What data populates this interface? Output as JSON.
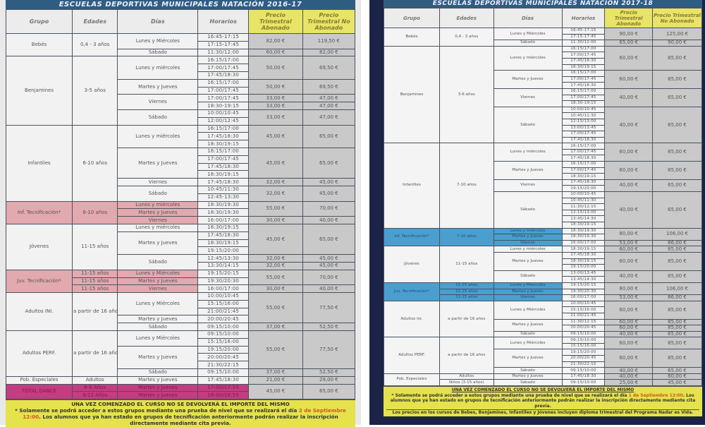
{
  "colors": {
    "header_bar": "#2f5d82",
    "price_header": "#e8e468",
    "tecnificacion_2016": "#e2a9ae",
    "total_dance": "#c23d82",
    "tecnificacion_2017": "#4a9fce",
    "footer": "#e5e24c"
  },
  "tables": [
    {
      "title": "ESCUELAS DEPORTIVAS MUNICIPALES NATACIÓN 2016-17",
      "headers": [
        "Grupo",
        "Edades",
        "Días",
        "Horarios",
        "Precio Trimestral Abonado",
        "Precio Trimestral No Abonado"
      ],
      "rows": [
        [
          [
            "Bebés",
            3
          ],
          [
            "0,4 - 3 años",
            3
          ],
          [
            "Lunes y Miércoles",
            2
          ],
          "16:45-17:15",
          [
            "82,00 €",
            2
          ],
          [
            "119,50 €",
            2
          ]
        ],
        [
          "17:15-17:45"
        ],
        [
          "Sábado",
          "11:30/12:00",
          "60,00 €",
          "82,00 €"
        ],
        [
          [
            "Benjamines",
            9
          ],
          [
            "3-5 años",
            9
          ],
          [
            "Lunes y miércoles",
            3
          ],
          "16:15/17:00",
          [
            "50,00 €",
            3
          ],
          [
            "69,50 €",
            3
          ]
        ],
        [
          "17:00/17:45"
        ],
        [
          "17:45/18:30"
        ],
        [
          [
            "Martes y Jueves",
            2
          ],
          "16:15/17:00",
          [
            "50,00 €",
            2
          ],
          [
            "69,50 €",
            2
          ]
        ],
        [
          "17:00/17:45"
        ],
        [
          [
            "Viernes",
            2
          ],
          "17:00/17:45",
          "33,00 €",
          "47,00 €"
        ],
        [
          "18:30-19:15",
          "33,00 €",
          "47,00 €"
        ],
        [
          [
            "Sábado",
            2
          ],
          "10:00/10:45",
          [
            "33,00 €",
            2
          ],
          [
            "47,00 €",
            2
          ]
        ],
        [
          "12:00/12:45"
        ],
        [
          [
            "Infantiles",
            10
          ],
          [
            "6-10 años",
            10
          ],
          [
            "Lunes y miércoles",
            3
          ],
          "16:15/17:00",
          [
            "45,00 €",
            3
          ],
          [
            "65,00 €",
            3
          ]
        ],
        [
          "17:45/18:30"
        ],
        [
          "18:30/19:15"
        ],
        [
          [
            "Martes y Jueves",
            4
          ],
          "16:15/17:00",
          [
            "45,00 €",
            4
          ],
          [
            "65,00 €",
            4
          ]
        ],
        [
          "17:00/17:45"
        ],
        [
          "17:45/18:30"
        ],
        [
          "18:30/19:15"
        ],
        [
          "Viernes",
          "17:45/18:30",
          "32,00 €",
          "45,00 €"
        ],
        [
          [
            "Sábado",
            2
          ],
          "10:45/11:30",
          [
            "32,00 €",
            2
          ],
          [
            "45,00 €",
            2
          ]
        ],
        [
          "12:45-13:30"
        ],
        [
          [
            "Inf. Tecnificación*",
            3,
            "p"
          ],
          [
            "6-10 años",
            3,
            "p"
          ],
          [
            "Lunes y miércoles",
            1,
            "p"
          ],
          "18:30/19:30",
          [
            "55,00 €",
            2
          ],
          [
            "70,00 €",
            2
          ]
        ],
        [
          [
            "Martes y Jueves",
            1,
            "p"
          ],
          "18:30/19:30"
        ],
        [
          [
            "Viernes",
            1,
            "p"
          ],
          "16:00/17:00",
          "30,00 €",
          "40,00 €"
        ],
        [
          [
            "Jóvenes",
            6
          ],
          [
            "11-15 años",
            6
          ],
          "Lunes y miércoles",
          "18:30/19:15",
          [
            "45,00 €",
            4
          ],
          [
            "65,00 €",
            4
          ]
        ],
        [
          [
            "Martes y Jueves",
            3
          ],
          "17:45/18:30"
        ],
        [
          "18:30/19:15"
        ],
        [
          "19:15/20:00"
        ],
        [
          [
            "Sábado",
            2
          ],
          "12:45/13:30",
          "32,00 €",
          "45,00 €"
        ],
        [
          "13:30/14:15",
          "32,00 €",
          "45,00 €"
        ],
        [
          [
            "Juv. Tecnificación*",
            3,
            "p"
          ],
          [
            "11-15 años",
            1,
            "p"
          ],
          [
            "Lunes y Miércoles",
            1,
            "p"
          ],
          "19:15/20:15",
          [
            "55,00 €",
            2
          ],
          [
            "70,00 €",
            2
          ]
        ],
        [
          [
            "11-15 años",
            1,
            "p"
          ],
          [
            "Martes y Jueves",
            1,
            "p"
          ],
          "19:30/20:30"
        ],
        [
          [
            "11-15 años",
            1,
            "p"
          ],
          [
            "Viernes",
            1,
            "p"
          ],
          "16:00/17:00",
          "30,00 €",
          "40,00 €"
        ],
        [
          [
            "Adultos INI.",
            5
          ],
          [
            "a partir de 16 años",
            5
          ],
          [
            "Lunes y Miércoles",
            3
          ],
          "10:00/10:45",
          [
            "55,00 €",
            4
          ],
          [
            "77,50 €",
            4
          ]
        ],
        [
          "15:15/16:00"
        ],
        [
          "21:00/21:45"
        ],
        [
          "Martes y Jueves",
          "20:00/20:45"
        ],
        [
          "Sábado",
          "09:15/10:00",
          "37,00 €",
          "52,50 €"
        ],
        [
          [
            "Adultos PERF.",
            6
          ],
          [
            "a partir de 16 años",
            6
          ],
          [
            "Lunes y Miércoles",
            2
          ],
          "09:15/10:00",
          [
            "55,00 €",
            5
          ],
          [
            "77,50 €",
            5
          ]
        ],
        [
          "15:15/16:00"
        ],
        [
          [
            "Martes y Jueves",
            3
          ],
          "19:15/20:00"
        ],
        [
          "20:00/20:45"
        ],
        [
          "21:30/22:15"
        ],
        [
          "Sábado",
          "09:15/10:00",
          "37,00 €",
          "52,50 €"
        ],
        [
          "Pob. Especiales",
          "Adultos",
          "Martes y Jueves",
          "17:45/18:30",
          "21,00 €",
          "29,00 €"
        ],
        [
          [
            "TOTAL DANCE",
            2,
            "m"
          ],
          [
            "6-8 Años",
            1,
            "m"
          ],
          [
            "Martes y Jueves",
            1,
            "m"
          ],
          [
            "17:00/17:55",
            1,
            "m"
          ],
          [
            "45,00 €",
            2
          ],
          [
            "65,00 €",
            2
          ]
        ],
        [
          [
            "9-12 Años",
            1,
            "m"
          ],
          [
            "Martes y Jueves",
            1,
            "m"
          ],
          [
            "18:00/18:55",
            1,
            "m"
          ]
        ]
      ],
      "footer": {
        "notice": "UNA VEZ COMENZADO EL CURSO NO SE DEVOLVERÁ EL IMPORTE DEL MISMO",
        "note_a": "* Solamente se podrá acceder a estos grupos mediante una prueba de nivel que se realizará el día ",
        "note_date": "2 de Septiembre 12:00",
        "note_b": ". Los alumnos que ya han estado en grupos de tecnificación anteriormente podrán realizar la inscripción directamente mediante cita previa."
      }
    },
    {
      "title": "ESCUELAS DEPORTIVAS MUNICIPALES NATACIÓN 2017-18",
      "headers": [
        "Grupo",
        "Edades",
        "Días",
        "Horarios",
        "Precio Trimestral Abonado",
        "Precio Trimestral No Abonado"
      ],
      "rows": [
        [
          [
            "Bebés",
            3
          ],
          [
            "0,4 - 3 años",
            3
          ],
          [
            "Lunes y Miércoles",
            2
          ],
          "16:45-17:15",
          [
            "90,00 €",
            2
          ],
          [
            "125,00 €",
            2
          ]
        ],
        [
          "17:15-17:45"
        ],
        [
          "Sábado",
          "11:30/12:00",
          "65,00 €",
          "90,00 €"
        ],
        [
          [
            "Benjamines",
            16
          ],
          [
            "3-6 años",
            16
          ],
          [
            "Lunes y miércoles",
            4
          ],
          "16:15/17:00",
          [
            "60,00 €",
            4
          ],
          [
            "85,00 €",
            4
          ]
        ],
        [
          "17:00/17:45"
        ],
        [
          "17:45/18:30"
        ],
        [
          "18:30/19:15"
        ],
        [
          [
            "Martes y Jueves",
            3
          ],
          "16:15/17:00",
          [
            "60,00 €",
            3
          ],
          [
            "85,00 €",
            3
          ]
        ],
        [
          "17:00/17:45"
        ],
        [
          "17:45/18:30"
        ],
        [
          [
            "Viernes",
            3
          ],
          "16:15/17:00",
          [
            "40,00 €",
            3
          ],
          [
            "65,00 €",
            3
          ]
        ],
        [
          "17:00/17:45"
        ],
        [
          "18:30-19:15"
        ],
        [
          [
            "Sábado",
            6
          ],
          "10:00/10:45",
          [
            "40,00 €",
            6
          ],
          [
            "65,00 €",
            6
          ]
        ],
        [
          "10:45/11:30"
        ],
        [
          "12:15/13:00"
        ],
        [
          "13:00/13:45"
        ],
        [
          "17:00/17:45"
        ],
        [
          "17:45/18:30"
        ],
        [
          [
            "Infantiles",
            14
          ],
          [
            "7-10 años",
            14
          ],
          [
            "Lunes y miércoles",
            3
          ],
          "16:15/17:00",
          [
            "60,00 €",
            3
          ],
          [
            "85,00 €",
            3
          ]
        ],
        [
          "17:00/17:45"
        ],
        [
          "17:45/18:30"
        ],
        [
          [
            "Martes y Jueves",
            3
          ],
          "16:15/17:00",
          [
            "60,00 €",
            3
          ],
          [
            "85,00 €",
            3
          ]
        ],
        [
          "17:00/17:45"
        ],
        [
          "18:30/19:15"
        ],
        [
          [
            "Viernes",
            2
          ],
          "17:45/18:30",
          [
            "40,00 €",
            2
          ],
          [
            "65,00 €",
            2
          ]
        ],
        [
          "19:15/20:00"
        ],
        [
          [
            "Sábado",
            6
          ],
          "10:00/10:45",
          [
            "40,00 €",
            6
          ],
          [
            "65,00 €",
            6
          ]
        ],
        [
          "10:45/11:30"
        ],
        [
          "11:30/12:15"
        ],
        [
          "12:15/13:00"
        ],
        [
          "13:45/14:30"
        ],
        [
          "18:30/19:15"
        ],
        [
          [
            "Inf. Tecnificación*",
            3,
            "b"
          ],
          [
            "7-10 años",
            3,
            "b"
          ],
          [
            "Lunes y miércoles",
            1,
            "b"
          ],
          "18:30/19:30",
          [
            "80,00 €",
            2
          ],
          [
            "106,00 €",
            2
          ]
        ],
        [
          [
            "Martes y Jueves",
            1,
            "b"
          ],
          "18:30/19:30"
        ],
        [
          [
            "Viernes",
            1,
            "b"
          ],
          "16:00/17:00",
          "53,00 €",
          "86,00 €"
        ],
        [
          [
            "Jóvenes",
            6
          ],
          [
            "11-15 años",
            6
          ],
          "Lunes y miércoles",
          "18:30/19:15",
          "60,00 €",
          "85,00 €"
        ],
        [
          [
            "Martes y Jueves",
            3
          ],
          "17:45/18:30",
          [
            "60,00 €",
            3
          ],
          [
            "85,00 €",
            3
          ]
        ],
        [
          "18:30/19:15"
        ],
        [
          "19:15/20:00"
        ],
        [
          [
            "Sábado",
            2
          ],
          "13:00/13:45",
          [
            "40,00 €",
            2
          ],
          [
            "65,00 €",
            2
          ]
        ],
        [
          "13:45/14:30"
        ],
        [
          [
            "Juv. Tecnificación*",
            3,
            "b"
          ],
          [
            "11-15 años",
            1,
            "b"
          ],
          [
            "Lunes y Miércoles",
            1,
            "b"
          ],
          "19:15/20:15",
          [
            "80,00 €",
            2
          ],
          [
            "106,00 €",
            2
          ]
        ],
        [
          [
            "11-15 años",
            1,
            "b"
          ],
          [
            "Martes y Jueves",
            1,
            "b"
          ],
          "19:30/20:30"
        ],
        [
          [
            "11-15 años",
            1,
            "b"
          ],
          [
            "Viernes",
            1,
            "b"
          ],
          "16:00/17:00",
          "53,00 €",
          "86,00 €"
        ],
        [
          [
            "Adultos ini.",
            6
          ],
          [
            "a partir de 16 años",
            6
          ],
          [
            "Lunes y Miércoles",
            3
          ],
          "10:00/10:45",
          [
            "60,00 €",
            3
          ],
          [
            "85,00 €",
            3
          ]
        ],
        [
          "15:15/16:00"
        ],
        [
          "21:00/21:45"
        ],
        [
          [
            "Martes y Jueves",
            2
          ],
          "11:30/12:15",
          "60,00 €",
          "85,00 €"
        ],
        [
          "20:00/20:45",
          "60,00 €",
          "85,00 €"
        ],
        [
          "Sábado",
          "09:15/10:00",
          "40,00 €",
          "65,00 €"
        ],
        [
          [
            "Adultos PERF.",
            6
          ],
          [
            "a partir de 16 años",
            6
          ],
          [
            "Lunes y Miércoles",
            2
          ],
          "09:15/10:00",
          [
            "60,00 €",
            2
          ],
          [
            "85,00 €",
            2
          ]
        ],
        [
          "15:15/16:00"
        ],
        [
          [
            "Martes y Jueves",
            3
          ],
          "19:15/20:00",
          [
            "60,00 €",
            3
          ],
          [
            "85,00 €",
            3
          ]
        ],
        [
          "20:00/20:45"
        ],
        [
          "21:30/22:15"
        ],
        [
          "Sábado",
          "09:15/10:00",
          "40,00 €",
          "65,00 €"
        ],
        [
          [
            "Pob. Especiales",
            2
          ],
          "Adultos",
          "Martes y Jueves",
          "17:45/18:30",
          "40,00 €",
          "60,00 €"
        ],
        [
          "Niños (3-15 años)",
          "Sábado",
          "09:15/10:00",
          "25,00 €",
          "45,00 €"
        ]
      ],
      "footer": {
        "notice": "UNA VEZ COMENZADO EL CURSO NO SE DEVOLVERÁ EL IMPORTE DEL MISMO",
        "note_a": "* Solamente se podrá acceder a estos grupos mediante una prueba de nivel que se realizará el día ",
        "note_date": "1 de Septiembre 12:00",
        "note_b": ". Los alumnos que ya han estado en grupos de tecnificación anteriormente podrán realizar la inscripción directamente mediante cita previa.",
        "note_c": "Los precios en los cursos de Bebes, Benjamines, Infantiles y Jóvenes incluyen diploma trimestral del Programa Nadar es Vida."
      }
    }
  ]
}
